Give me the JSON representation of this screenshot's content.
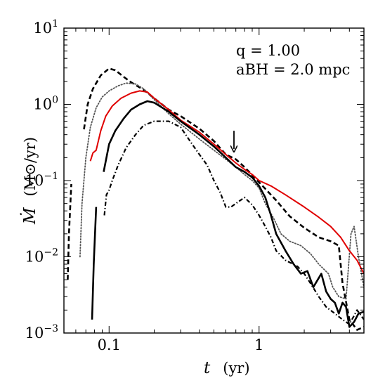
{
  "chart_data": {
    "type": "line",
    "xscale": "log",
    "yscale": "log",
    "xlim": [
      0.05,
      5.0
    ],
    "ylim": [
      0.001,
      10
    ],
    "x_ticks": [
      {
        "value": 0.1,
        "label": "0.1"
      },
      {
        "value": 1,
        "label": "1"
      }
    ],
    "y_ticks": [
      {
        "value": 0.001,
        "base": "10",
        "exp": "−3"
      },
      {
        "value": 0.01,
        "base": "10",
        "exp": "−2"
      },
      {
        "value": 0.1,
        "base": "10",
        "exp": "−1"
      },
      {
        "value": 1,
        "base": "10",
        "exp": "0"
      },
      {
        "value": 10,
        "base": "10",
        "exp": "1"
      }
    ],
    "xlabel": {
      "var": "t",
      "unit": "(yr)"
    },
    "ylabel": {
      "var": "Ṁ",
      "unit": "(M⊙/yr)"
    },
    "annotations": {
      "line1": "q = 1.00",
      "line2": "aBH = 2.0 mpc",
      "arrow": {
        "x": 0.68,
        "y_from": 0.45,
        "y_to": 0.26
      }
    },
    "grid": false,
    "legend": "none",
    "series": [
      {
        "style": "dashed",
        "color": "#000000",
        "width": 2.6,
        "segments": [
          [
            [
              0.053,
              0.005
            ],
            [
              0.054,
              0.02
            ],
            [
              0.056,
              0.09
            ]
          ],
          [
            [
              0.068,
              0.47
            ],
            [
              0.072,
              1.0
            ],
            [
              0.078,
              1.6
            ],
            [
              0.088,
              2.4
            ],
            [
              0.1,
              2.95
            ],
            [
              0.11,
              2.8
            ],
            [
              0.125,
              2.3
            ],
            [
              0.14,
              1.95
            ],
            [
              0.17,
              1.55
            ],
            [
              0.2,
              1.2
            ],
            [
              0.25,
              0.85
            ],
            [
              0.3,
              0.7
            ],
            [
              0.4,
              0.48
            ],
            [
              0.5,
              0.33
            ],
            [
              0.6,
              0.22
            ],
            [
              0.7,
              0.19
            ],
            [
              0.8,
              0.15
            ],
            [
              1.0,
              0.095
            ],
            [
              1.3,
              0.055
            ],
            [
              1.6,
              0.034
            ],
            [
              2.0,
              0.024
            ],
            [
              2.5,
              0.018
            ],
            [
              3.0,
              0.016
            ],
            [
              3.4,
              0.014
            ],
            [
              3.6,
              0.0045
            ],
            [
              4.0,
              0.0015
            ],
            [
              4.5,
              0.0011
            ],
            [
              5.0,
              0.0012
            ]
          ]
        ]
      },
      {
        "style": "dotted",
        "color": "#555555",
        "width": 1.8,
        "segments": [
          [
            [
              0.064,
              0.01
            ],
            [
              0.066,
              0.05
            ],
            [
              0.07,
              0.2
            ],
            [
              0.075,
              0.5
            ],
            [
              0.082,
              0.9
            ],
            [
              0.09,
              1.25
            ],
            [
              0.1,
              1.5
            ],
            [
              0.115,
              1.75
            ],
            [
              0.13,
              1.9
            ],
            [
              0.15,
              1.85
            ],
            [
              0.17,
              1.6
            ],
            [
              0.2,
              1.15
            ],
            [
              0.25,
              0.75
            ],
            [
              0.3,
              0.55
            ],
            [
              0.4,
              0.35
            ],
            [
              0.5,
              0.25
            ],
            [
              0.6,
              0.19
            ],
            [
              0.7,
              0.15
            ],
            [
              0.8,
              0.12
            ],
            [
              0.9,
              0.1
            ],
            [
              1.0,
              0.08
            ],
            [
              1.1,
              0.05
            ],
            [
              1.25,
              0.032
            ],
            [
              1.4,
              0.02
            ],
            [
              1.6,
              0.016
            ],
            [
              1.9,
              0.014
            ],
            [
              2.2,
              0.011
            ],
            [
              2.5,
              0.008
            ],
            [
              2.9,
              0.006
            ],
            [
              3.1,
              0.004
            ],
            [
              3.4,
              0.003
            ],
            [
              3.8,
              0.0028
            ],
            [
              4.1,
              0.02
            ],
            [
              4.3,
              0.025
            ],
            [
              4.6,
              0.01
            ],
            [
              5.0,
              0.004
            ]
          ]
        ]
      },
      {
        "style": "solid",
        "color": "#e00000",
        "width": 2.0,
        "segments": [
          [
            [
              0.075,
              0.18
            ],
            [
              0.078,
              0.23
            ],
            [
              0.082,
              0.25
            ],
            [
              0.088,
              0.45
            ],
            [
              0.095,
              0.7
            ],
            [
              0.105,
              0.95
            ],
            [
              0.12,
              1.2
            ],
            [
              0.14,
              1.4
            ],
            [
              0.16,
              1.5
            ],
            [
              0.18,
              1.45
            ],
            [
              0.2,
              1.2
            ],
            [
              0.25,
              0.85
            ],
            [
              0.3,
              0.62
            ],
            [
              0.4,
              0.43
            ],
            [
              0.5,
              0.3
            ],
            [
              0.6,
              0.22
            ],
            [
              0.7,
              0.17
            ],
            [
              0.8,
              0.14
            ],
            [
              0.9,
              0.12
            ],
            [
              1.0,
              0.1
            ],
            [
              1.2,
              0.085
            ],
            [
              1.5,
              0.065
            ],
            [
              2.0,
              0.045
            ],
            [
              2.5,
              0.033
            ],
            [
              3.0,
              0.025
            ],
            [
              3.5,
              0.018
            ],
            [
              4.0,
              0.012
            ],
            [
              4.5,
              0.009
            ],
            [
              5.0,
              0.006
            ]
          ]
        ]
      },
      {
        "style": "solid",
        "color": "#000000",
        "width": 2.6,
        "segments": [
          [
            [
              0.077,
              0.0015
            ],
            [
              0.079,
              0.008
            ],
            [
              0.082,
              0.045
            ]
          ],
          [
            [
              0.092,
              0.13
            ],
            [
              0.1,
              0.3
            ],
            [
              0.11,
              0.45
            ],
            [
              0.125,
              0.65
            ],
            [
              0.14,
              0.85
            ],
            [
              0.16,
              1.0
            ],
            [
              0.18,
              1.1
            ],
            [
              0.2,
              1.05
            ],
            [
              0.25,
              0.8
            ],
            [
              0.3,
              0.6
            ],
            [
              0.4,
              0.4
            ],
            [
              0.5,
              0.28
            ],
            [
              0.6,
              0.2
            ],
            [
              0.7,
              0.15
            ],
            [
              0.8,
              0.13
            ],
            [
              0.9,
              0.11
            ],
            [
              1.0,
              0.085
            ],
            [
              1.1,
              0.06
            ],
            [
              1.2,
              0.035
            ],
            [
              1.3,
              0.02
            ],
            [
              1.5,
              0.012
            ],
            [
              1.7,
              0.008
            ],
            [
              1.9,
              0.006
            ],
            [
              2.1,
              0.0065
            ],
            [
              2.3,
              0.004
            ],
            [
              2.6,
              0.006
            ],
            [
              2.8,
              0.0035
            ],
            [
              3.0,
              0.0028
            ],
            [
              3.2,
              0.0025
            ],
            [
              3.4,
              0.0018
            ],
            [
              3.6,
              0.0025
            ],
            [
              3.8,
              0.0022
            ],
            [
              4.0,
              0.0012
            ],
            [
              4.3,
              0.0014
            ],
            [
              4.6,
              0.0018
            ],
            [
              5.0,
              0.0019
            ]
          ]
        ]
      },
      {
        "style": "dashdot",
        "color": "#000000",
        "width": 2.2,
        "segments": [
          [
            [
              0.093,
              0.035
            ],
            [
              0.096,
              0.065
            ],
            [
              0.1,
              0.075
            ],
            [
              0.105,
              0.1
            ],
            [
              0.115,
              0.16
            ],
            [
              0.13,
              0.27
            ],
            [
              0.15,
              0.4
            ],
            [
              0.17,
              0.53
            ],
            [
              0.2,
              0.6
            ],
            [
              0.25,
              0.6
            ],
            [
              0.3,
              0.5
            ],
            [
              0.35,
              0.32
            ],
            [
              0.4,
              0.22
            ],
            [
              0.45,
              0.16
            ],
            [
              0.5,
              0.1
            ],
            [
              0.55,
              0.07
            ],
            [
              0.6,
              0.045
            ],
            [
              0.65,
              0.045
            ],
            [
              0.7,
              0.05
            ],
            [
              0.75,
              0.055
            ],
            [
              0.8,
              0.06
            ],
            [
              0.9,
              0.048
            ],
            [
              1.0,
              0.035
            ],
            [
              1.1,
              0.025
            ],
            [
              1.2,
              0.018
            ],
            [
              1.3,
              0.012
            ],
            [
              1.5,
              0.009
            ],
            [
              1.8,
              0.0075
            ],
            [
              2.0,
              0.006
            ],
            [
              2.2,
              0.0045
            ],
            [
              2.5,
              0.003
            ],
            [
              2.8,
              0.0022
            ],
            [
              3.2,
              0.0018
            ],
            [
              3.6,
              0.0015
            ],
            [
              4.0,
              0.0013
            ],
            [
              4.5,
              0.002
            ],
            [
              5.0,
              0.0015
            ]
          ]
        ]
      }
    ]
  }
}
